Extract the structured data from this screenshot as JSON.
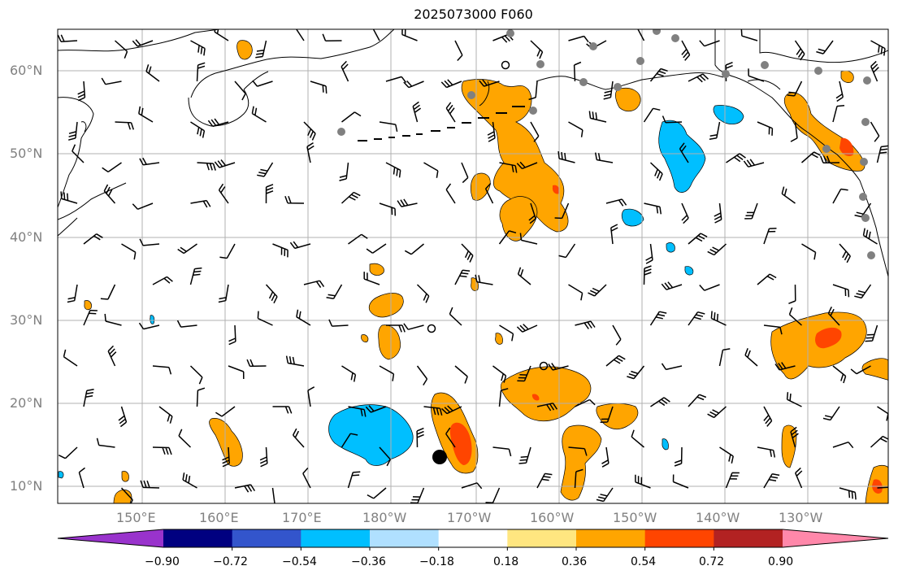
{
  "title": "2025073000 F060",
  "map": {
    "lat_labels": [
      "60°N",
      "50°N",
      "40°N",
      "30°N",
      "20°N",
      "10°N"
    ],
    "lon_labels": [
      "150°E",
      "160°E",
      "170°E",
      "180°W",
      "170°W",
      "160°W",
      "150°W",
      "140°W",
      "130°W"
    ],
    "gridline_color": "#b0b0b0",
    "label_color": "#808080"
  },
  "colorbar": {
    "ticks": [
      "−0.90",
      "−0.72",
      "−0.54",
      "−0.36",
      "−0.18",
      "0.18",
      "0.36",
      "0.54",
      "0.72",
      "0.90"
    ],
    "colors": [
      "#9933cc",
      "#000080",
      "#3355cc",
      "#00bfff",
      "#b0e0ff",
      "#ffffff",
      "#ffe680",
      "#ffa500",
      "#ff4500",
      "#b22222",
      "#ff88aa"
    ]
  },
  "legend_markers": {
    "station_dot_color": "#808080",
    "storm_marker_color": "#000000"
  }
}
